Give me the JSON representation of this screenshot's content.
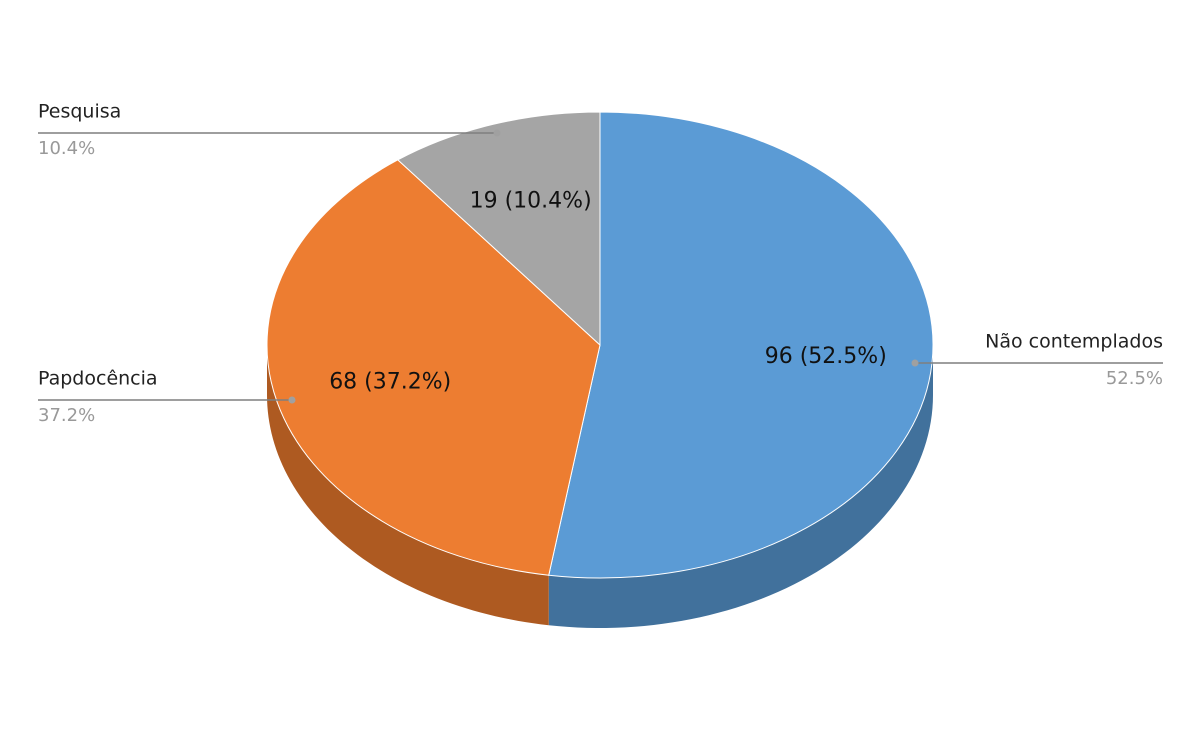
{
  "chart_data": {
    "type": "pie3d",
    "categories": [
      "Não contemplados",
      "Papdocência",
      "Pesquisa"
    ],
    "values": [
      96,
      68,
      19
    ],
    "value_labels": [
      "96 (52.5%)",
      "68 (37.2%)",
      "19 (10.4%)"
    ],
    "percent_labels": [
      "52.5%",
      "37.2%",
      "10.4%"
    ],
    "colors": [
      "#5b9bd5",
      "#ed7d31",
      "#a5a5a5"
    ],
    "side_colors": [
      "#41719c",
      "#ae5a21",
      "#7c7c7c"
    ]
  }
}
